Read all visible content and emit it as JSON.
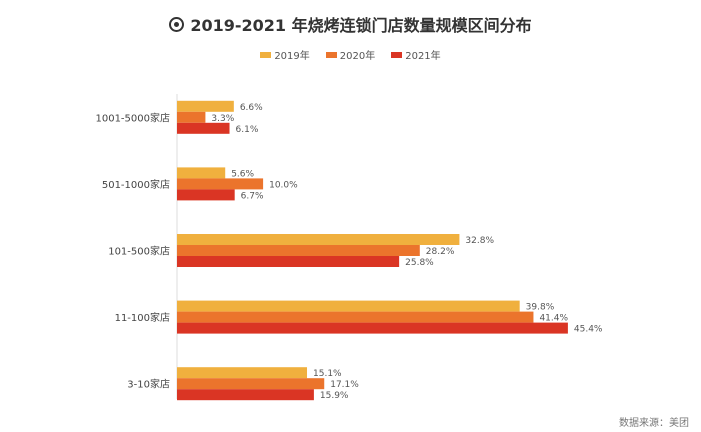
{
  "chart_data": {
    "type": "bar",
    "orientation": "horizontal",
    "title": "2019-2021 年烧烤连锁门店数量规模区间分布",
    "categories": [
      "1001-5000家店",
      "501-1000家店",
      "101-500家店",
      "11-100家店",
      "3-10家店"
    ],
    "series": [
      {
        "name": "2019年",
        "color": "#F0B03E",
        "values": [
          6.6,
          5.6,
          32.8,
          39.8,
          15.1
        ]
      },
      {
        "name": "2020年",
        "color": "#EB742C",
        "values": [
          3.3,
          10.0,
          28.2,
          41.4,
          17.1
        ]
      },
      {
        "name": "2021年",
        "color": "#DA3524",
        "values": [
          6.1,
          6.7,
          25.8,
          45.4,
          15.9
        ]
      }
    ],
    "value_suffix": "%",
    "legend_position": "top",
    "grid": false,
    "source": "数据来源：美团"
  }
}
